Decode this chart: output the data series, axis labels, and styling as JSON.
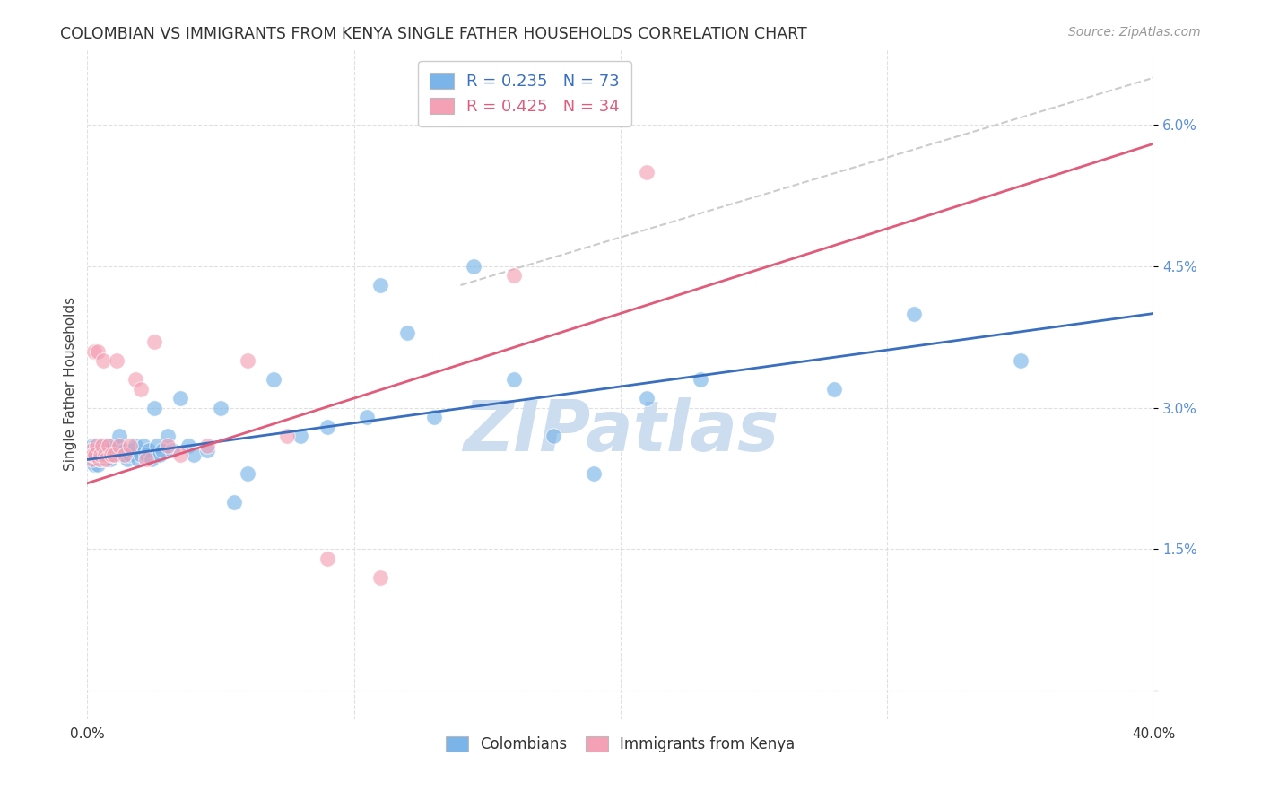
{
  "title": "COLOMBIAN VS IMMIGRANTS FROM KENYA SINGLE FATHER HOUSEHOLDS CORRELATION CHART",
  "source": "Source: ZipAtlas.com",
  "ylabel": "Single Father Households",
  "xlim": [
    0.0,
    40.0
  ],
  "ylim": [
    -0.3,
    6.8
  ],
  "yticks": [
    0.0,
    1.5,
    3.0,
    4.5,
    6.0
  ],
  "ytick_labels": [
    "",
    "1.5%",
    "3.0%",
    "4.5%",
    "6.0%"
  ],
  "xticks": [
    0.0,
    10.0,
    20.0,
    30.0,
    40.0
  ],
  "xtick_labels": [
    "0.0%",
    "",
    "",
    "",
    "40.0%"
  ],
  "blue_R": 0.235,
  "blue_N": 73,
  "pink_R": 0.425,
  "pink_N": 34,
  "blue_color": "#7ab4e8",
  "pink_color": "#f4a0b5",
  "blue_line_color": "#3a6fbf",
  "pink_line_color": "#e05c7a",
  "watermark_color": "#ccddf0",
  "background_color": "#ffffff",
  "grid_color": "#dddddd",
  "legend_label_blue": "Colombians",
  "legend_label_pink": "Immigrants from Kenya",
  "blue_line_x0": 0.0,
  "blue_line_y0": 2.45,
  "blue_line_x1": 40.0,
  "blue_line_y1": 4.0,
  "pink_line_x0": 0.0,
  "pink_line_y0": 2.2,
  "pink_line_x1": 40.0,
  "pink_line_y1": 5.8,
  "gray_dash_x0": 14.0,
  "gray_dash_y0": 4.3,
  "gray_dash_x1": 40.0,
  "gray_dash_y1": 6.5,
  "colombian_x": [
    0.15,
    0.18,
    0.2,
    0.22,
    0.25,
    0.28,
    0.3,
    0.32,
    0.35,
    0.38,
    0.4,
    0.42,
    0.45,
    0.48,
    0.5,
    0.52,
    0.55,
    0.58,
    0.6,
    0.62,
    0.65,
    0.68,
    0.7,
    0.72,
    0.75,
    0.8,
    0.85,
    0.9,
    0.95,
    1.0,
    1.1,
    1.2,
    1.3,
    1.4,
    1.5,
    1.6,
    1.7,
    1.8,
    1.9,
    2.0,
    2.1,
    2.2,
    2.3,
    2.4,
    2.5,
    2.6,
    2.7,
    2.8,
    3.0,
    3.2,
    3.5,
    3.8,
    4.0,
    4.5,
    5.0,
    5.5,
    6.0,
    7.0,
    8.0,
    9.0,
    10.5,
    11.0,
    12.0,
    13.0,
    14.5,
    16.0,
    17.5,
    19.0,
    21.0,
    23.0,
    28.0,
    31.0,
    35.0
  ],
  "colombian_y": [
    2.55,
    2.5,
    2.6,
    2.55,
    2.4,
    2.5,
    2.6,
    2.55,
    2.5,
    2.4,
    2.5,
    2.55,
    2.45,
    2.6,
    2.5,
    2.55,
    2.5,
    2.45,
    2.5,
    2.55,
    2.5,
    2.6,
    2.55,
    2.45,
    2.6,
    2.55,
    2.45,
    2.5,
    2.6,
    2.5,
    2.6,
    2.7,
    2.5,
    2.55,
    2.45,
    2.5,
    2.55,
    2.6,
    2.45,
    2.5,
    2.6,
    2.5,
    2.55,
    2.45,
    3.0,
    2.6,
    2.5,
    2.55,
    2.7,
    2.55,
    3.1,
    2.6,
    2.5,
    2.55,
    3.0,
    2.0,
    2.3,
    3.3,
    2.7,
    2.8,
    2.9,
    4.3,
    3.8,
    2.9,
    4.5,
    3.3,
    2.7,
    2.3,
    3.1,
    3.3,
    3.2,
    4.0,
    3.5
  ],
  "kenya_x": [
    0.15,
    0.18,
    0.2,
    0.22,
    0.25,
    0.3,
    0.35,
    0.4,
    0.45,
    0.5,
    0.55,
    0.6,
    0.65,
    0.7,
    0.8,
    0.9,
    1.0,
    1.1,
    1.2,
    1.4,
    1.6,
    1.8,
    2.0,
    2.2,
    2.5,
    3.0,
    3.5,
    4.5,
    6.0,
    7.5,
    9.0,
    11.0,
    16.0,
    21.0
  ],
  "kenya_y": [
    2.55,
    2.45,
    2.5,
    2.5,
    3.6,
    2.5,
    2.6,
    3.6,
    2.45,
    2.5,
    2.6,
    3.5,
    2.5,
    2.45,
    2.6,
    2.5,
    2.5,
    3.5,
    2.6,
    2.5,
    2.6,
    3.3,
    3.2,
    2.45,
    3.7,
    2.6,
    2.5,
    2.6,
    3.5,
    2.7,
    1.4,
    1.2,
    4.4,
    5.5
  ]
}
